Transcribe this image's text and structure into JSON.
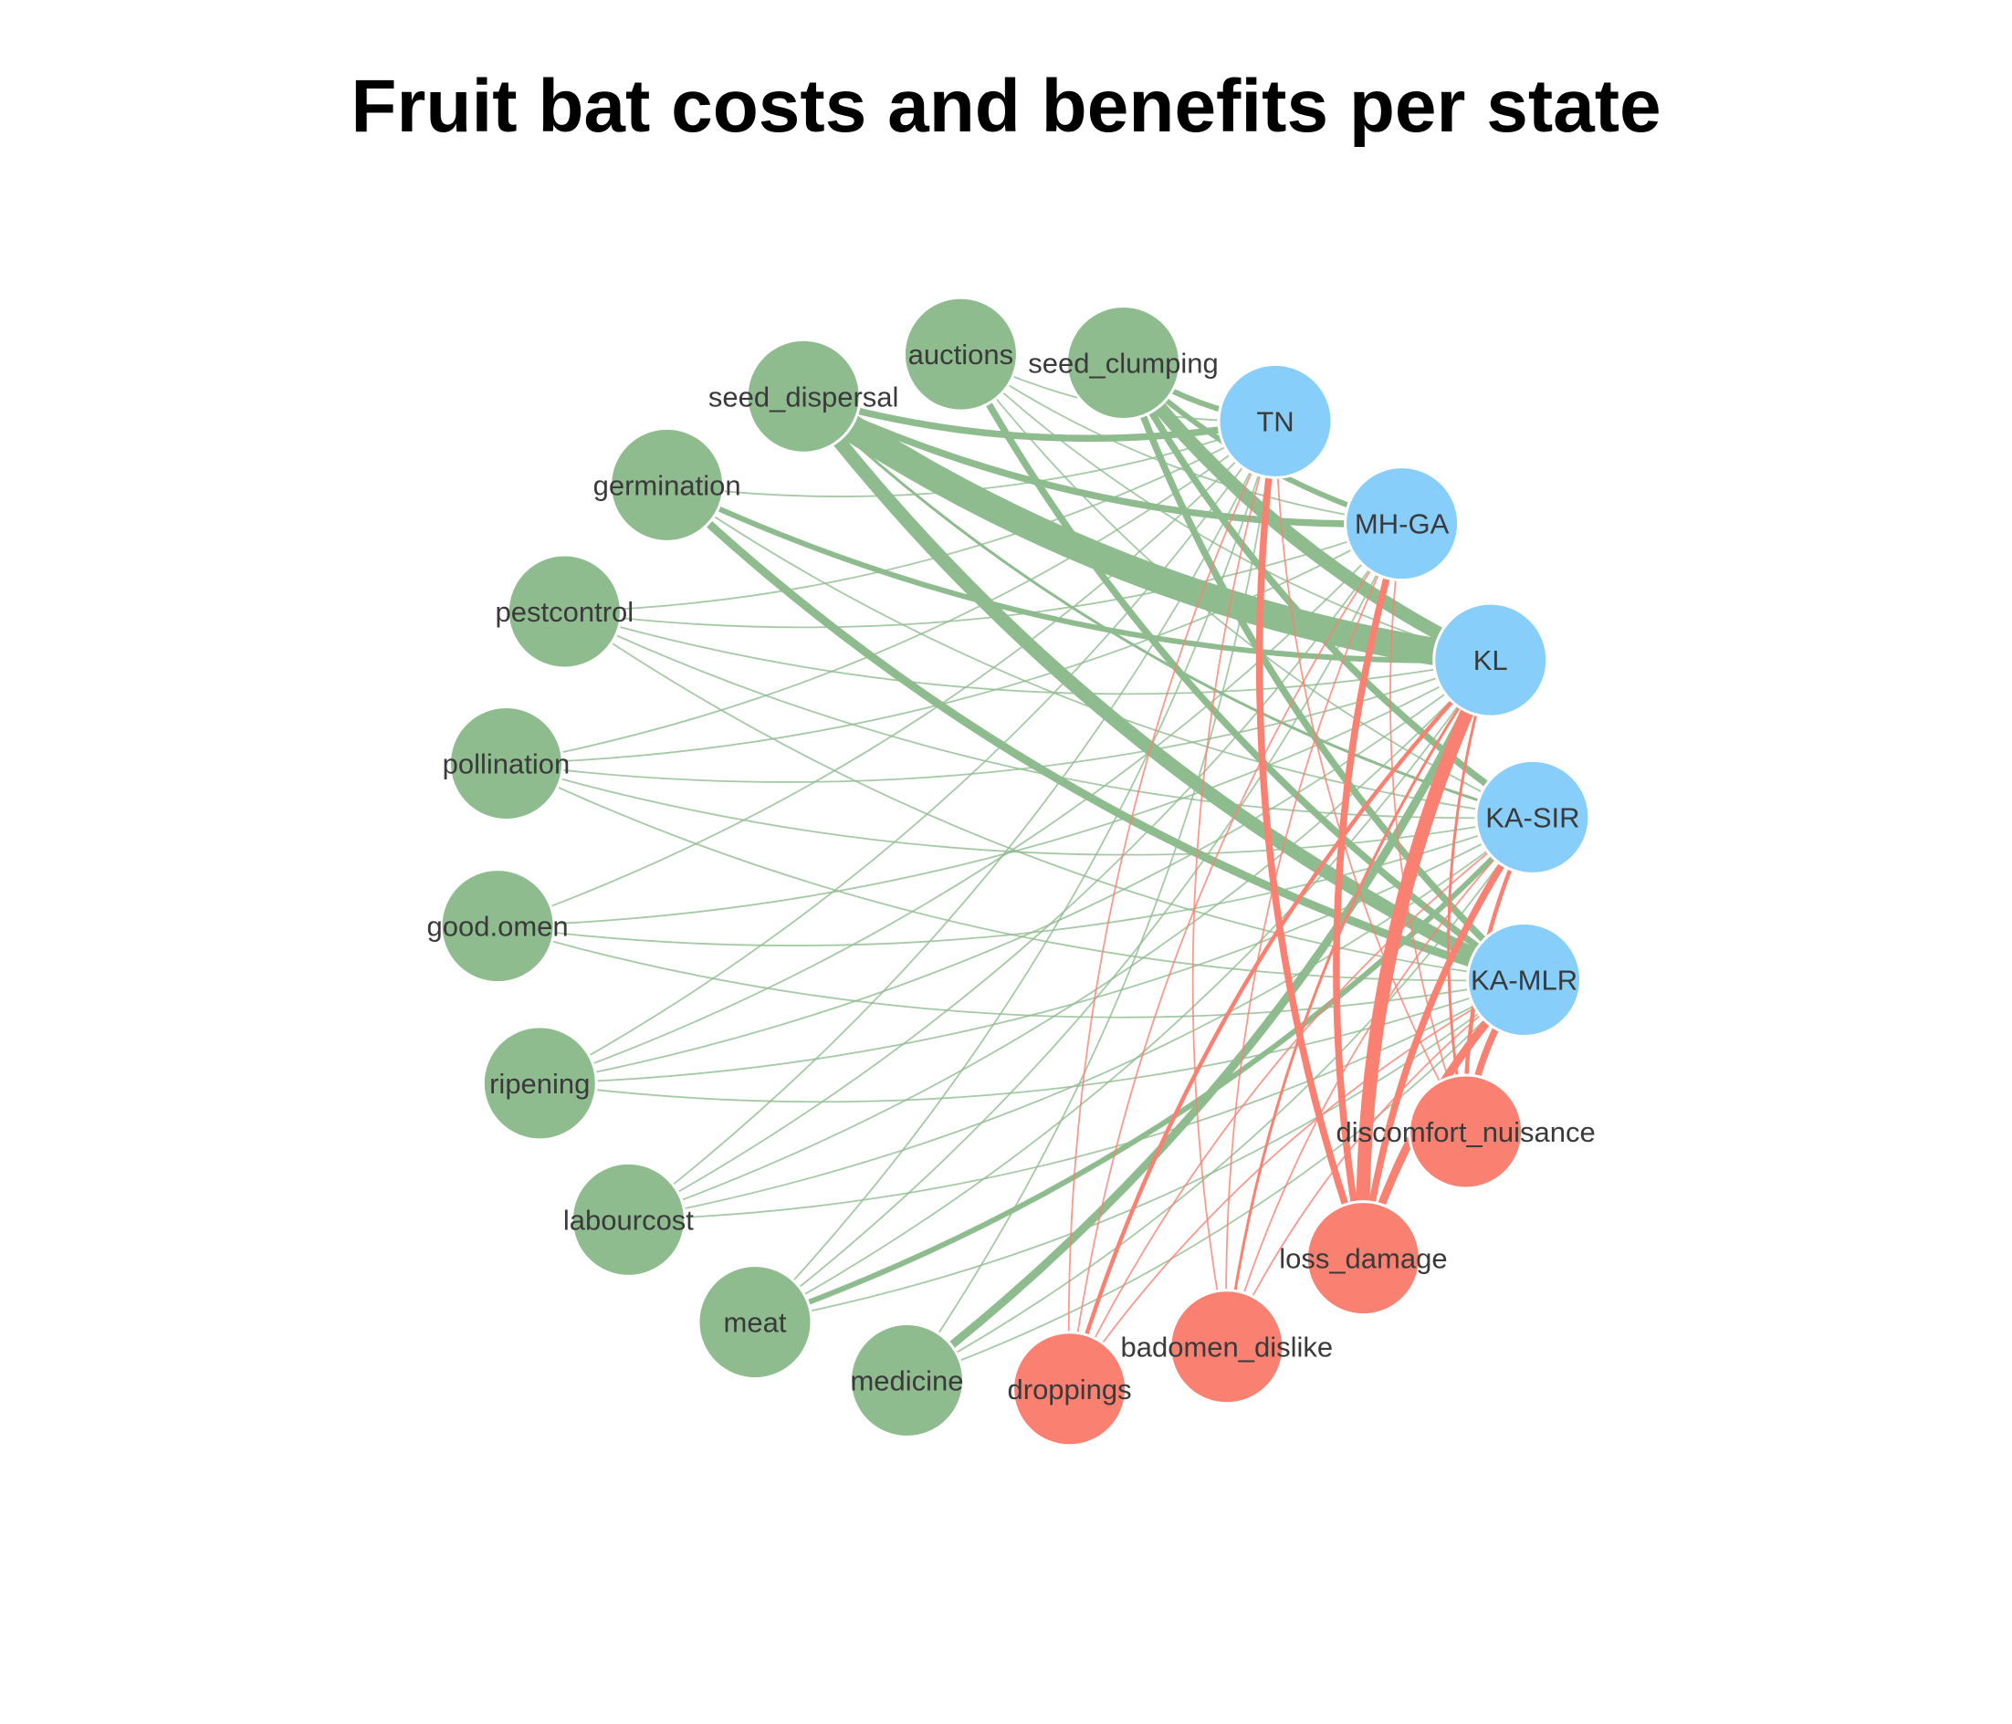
{
  "title": "Fruit bat costs and benefits per state",
  "colors": {
    "benefit": "#8fbc8f",
    "state": "#87cefa",
    "cost": "#fa8072",
    "benefit_edge": "#8fbc8f",
    "cost_edge": "#fa8072"
  },
  "nodes": [
    {
      "id": "seed_clumping",
      "group": "benefit"
    },
    {
      "id": "TN",
      "group": "state"
    },
    {
      "id": "MH-GA",
      "group": "state"
    },
    {
      "id": "KL",
      "group": "state"
    },
    {
      "id": "KA-SIR",
      "group": "state"
    },
    {
      "id": "KA-MLR",
      "group": "state"
    },
    {
      "id": "discomfort_nuisance",
      "group": "cost"
    },
    {
      "id": "loss_damage",
      "group": "cost"
    },
    {
      "id": "badomen_dislike",
      "group": "cost"
    },
    {
      "id": "droppings",
      "group": "cost"
    },
    {
      "id": "medicine",
      "group": "benefit"
    },
    {
      "id": "meat",
      "group": "benefit"
    },
    {
      "id": "labourcost",
      "group": "benefit"
    },
    {
      "id": "ripening",
      "group": "benefit"
    },
    {
      "id": "good.omen",
      "group": "benefit"
    },
    {
      "id": "pollination",
      "group": "benefit"
    },
    {
      "id": "pestcontrol",
      "group": "benefit"
    },
    {
      "id": "germination",
      "group": "benefit"
    },
    {
      "id": "seed_dispersal",
      "group": "benefit"
    },
    {
      "id": "auctions",
      "group": "benefit"
    }
  ],
  "edges": [
    {
      "source": "seed_dispersal",
      "target": "KL",
      "weight": 10
    },
    {
      "source": "seed_dispersal",
      "target": "KA-MLR",
      "weight": 5
    },
    {
      "source": "seed_dispersal",
      "target": "TN",
      "weight": 2.5
    },
    {
      "source": "seed_dispersal",
      "target": "MH-GA",
      "weight": 2.5
    },
    {
      "source": "seed_dispersal",
      "target": "KA-SIR",
      "weight": 1
    },
    {
      "source": "seed_clumping",
      "target": "KL",
      "weight": 5
    },
    {
      "source": "seed_clumping",
      "target": "KA-SIR",
      "weight": 2.5
    },
    {
      "source": "seed_clumping",
      "target": "KA-MLR",
      "weight": 2.5
    },
    {
      "source": "seed_clumping",
      "target": "TN",
      "weight": 2
    },
    {
      "source": "seed_clumping",
      "target": "MH-GA",
      "weight": 2
    },
    {
      "source": "germination",
      "target": "KA-MLR",
      "weight": 3
    },
    {
      "source": "germination",
      "target": "KL",
      "weight": 2
    },
    {
      "source": "germination",
      "target": "KA-SIR",
      "weight": 0.6
    },
    {
      "source": "germination",
      "target": "TN",
      "weight": 0.6
    },
    {
      "source": "auctions",
      "target": "KA-MLR",
      "weight": 2.5
    },
    {
      "source": "auctions",
      "target": "TN",
      "weight": 0.6
    },
    {
      "source": "auctions",
      "target": "MH-GA",
      "weight": 0.6
    },
    {
      "source": "auctions",
      "target": "KL",
      "weight": 0.6
    },
    {
      "source": "auctions",
      "target": "KA-SIR",
      "weight": 0.6
    },
    {
      "source": "medicine",
      "target": "KL",
      "weight": 3
    },
    {
      "source": "medicine",
      "target": "KA-SIR",
      "weight": 0.6
    },
    {
      "source": "medicine",
      "target": "KA-MLR",
      "weight": 0.6
    },
    {
      "source": "medicine",
      "target": "TN",
      "weight": 0.6
    },
    {
      "source": "meat",
      "target": "KA-SIR",
      "weight": 2
    },
    {
      "source": "meat",
      "target": "KL",
      "weight": 0.6
    },
    {
      "source": "meat",
      "target": "TN",
      "weight": 0.6
    },
    {
      "source": "meat",
      "target": "MH-GA",
      "weight": 0.6
    },
    {
      "source": "meat",
      "target": "KA-MLR",
      "weight": 0.6
    },
    {
      "source": "labourcost",
      "target": "KL",
      "weight": 0.6
    },
    {
      "source": "labourcost",
      "target": "KA-SIR",
      "weight": 0.6
    },
    {
      "source": "labourcost",
      "target": "KA-MLR",
      "weight": 0.6
    },
    {
      "source": "labourcost",
      "target": "TN",
      "weight": 0.6
    },
    {
      "source": "labourcost",
      "target": "MH-GA",
      "weight": 0.6
    },
    {
      "source": "ripening",
      "target": "KL",
      "weight": 0.6
    },
    {
      "source": "ripening",
      "target": "KA-SIR",
      "weight": 0.6
    },
    {
      "source": "ripening",
      "target": "KA-MLR",
      "weight": 0.6
    },
    {
      "source": "ripening",
      "target": "TN",
      "weight": 0.6
    },
    {
      "source": "ripening",
      "target": "MH-GA",
      "weight": 0.6
    },
    {
      "source": "good.omen",
      "target": "KL",
      "weight": 0.6
    },
    {
      "source": "good.omen",
      "target": "KA-SIR",
      "weight": 0.6
    },
    {
      "source": "good.omen",
      "target": "KA-MLR",
      "weight": 0.6
    },
    {
      "source": "good.omen",
      "target": "TN",
      "weight": 0.6
    },
    {
      "source": "pollination",
      "target": "KL",
      "weight": 0.6
    },
    {
      "source": "pollination",
      "target": "KA-SIR",
      "weight": 0.6
    },
    {
      "source": "pollination",
      "target": "KA-MLR",
      "weight": 0.6
    },
    {
      "source": "pollination",
      "target": "TN",
      "weight": 0.6
    },
    {
      "source": "pollination",
      "target": "MH-GA",
      "weight": 0.6
    },
    {
      "source": "pestcontrol",
      "target": "KL",
      "weight": 0.6
    },
    {
      "source": "pestcontrol",
      "target": "KA-SIR",
      "weight": 0.6
    },
    {
      "source": "pestcontrol",
      "target": "KA-MLR",
      "weight": 0.6
    },
    {
      "source": "pestcontrol",
      "target": "TN",
      "weight": 0.6
    },
    {
      "source": "pestcontrol",
      "target": "MH-GA",
      "weight": 0.6
    },
    {
      "source": "KL",
      "target": "loss_damage",
      "weight": 5
    },
    {
      "source": "TN",
      "target": "loss_damage",
      "weight": 2.5
    },
    {
      "source": "MH-GA",
      "target": "loss_damage",
      "weight": 2.5
    },
    {
      "source": "KA-SIR",
      "target": "loss_damage",
      "weight": 2.5
    },
    {
      "source": "KA-MLR",
      "target": "loss_damage",
      "weight": 3
    },
    {
      "source": "KA-MLR",
      "target": "discomfort_nuisance",
      "weight": 2.5
    },
    {
      "source": "KA-SIR",
      "target": "discomfort_nuisance",
      "weight": 1.5
    },
    {
      "source": "KL",
      "target": "discomfort_nuisance",
      "weight": 1
    },
    {
      "source": "TN",
      "target": "discomfort_nuisance",
      "weight": 0.6
    },
    {
      "source": "MH-GA",
      "target": "discomfort_nuisance",
      "weight": 0.6
    },
    {
      "source": "KL",
      "target": "droppings",
      "weight": 1.5
    },
    {
      "source": "TN",
      "target": "droppings",
      "weight": 0.6
    },
    {
      "source": "MH-GA",
      "target": "droppings",
      "weight": 0.6
    },
    {
      "source": "KA-SIR",
      "target": "droppings",
      "weight": 0.6
    },
    {
      "source": "KA-MLR",
      "target": "droppings",
      "weight": 0.6
    },
    {
      "source": "KL",
      "target": "badomen_dislike",
      "weight": 1
    },
    {
      "source": "TN",
      "target": "badomen_dislike",
      "weight": 0.6
    },
    {
      "source": "MH-GA",
      "target": "badomen_dislike",
      "weight": 0.6
    },
    {
      "source": "KA-SIR",
      "target": "badomen_dislike",
      "weight": 0.6
    },
    {
      "source": "KA-MLR",
      "target": "badomen_dislike",
      "weight": 0.6
    }
  ]
}
